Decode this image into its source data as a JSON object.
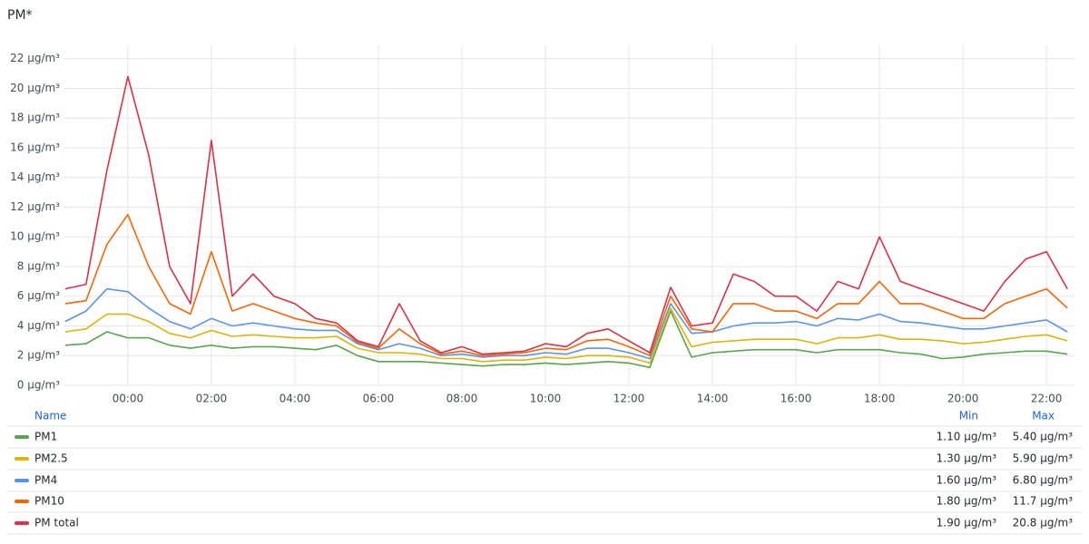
{
  "chart_data": {
    "type": "line",
    "title": "PM*",
    "x": [
      -1.5,
      -1.0,
      -0.5,
      0.0,
      0.5,
      1.0,
      1.5,
      2.0,
      2.5,
      3.0,
      3.5,
      4.0,
      4.5,
      5.0,
      5.5,
      6.0,
      6.5,
      7.0,
      7.5,
      8.0,
      8.5,
      9.0,
      9.5,
      10.0,
      10.5,
      11.0,
      11.5,
      12.0,
      12.5,
      13.0,
      13.5,
      14.0,
      14.5,
      15.0,
      15.5,
      16.0,
      16.5,
      17.0,
      17.5,
      18.0,
      18.5,
      19.0,
      19.5,
      20.0,
      20.5,
      21.0,
      21.5,
      22.0,
      22.5
    ],
    "xlim": [
      -1.54,
      22.67
    ],
    "xticks": [
      {
        "value": 0,
        "label": "00:00"
      },
      {
        "value": 2,
        "label": "02:00"
      },
      {
        "value": 4,
        "label": "04:00"
      },
      {
        "value": 6,
        "label": "06:00"
      },
      {
        "value": 8,
        "label": "08:00"
      },
      {
        "value": 10,
        "label": "10:00"
      },
      {
        "value": 12,
        "label": "12:00"
      },
      {
        "value": 14,
        "label": "14:00"
      },
      {
        "value": 16,
        "label": "16:00"
      },
      {
        "value": 18,
        "label": "18:00"
      },
      {
        "value": 20,
        "label": "20:00"
      },
      {
        "value": 22,
        "label": "22:00"
      }
    ],
    "ylim": [
      0,
      22.9
    ],
    "yticks": [
      {
        "value": 0,
        "label": "0 µg/m³"
      },
      {
        "value": 2,
        "label": "2 µg/m³"
      },
      {
        "value": 4,
        "label": "4 µg/m³"
      },
      {
        "value": 6,
        "label": "6 µg/m³"
      },
      {
        "value": 8,
        "label": "8 µg/m³"
      },
      {
        "value": 10,
        "label": "10 µg/m³"
      },
      {
        "value": 12,
        "label": "12 µg/m³"
      },
      {
        "value": 14,
        "label": "14 µg/m³"
      },
      {
        "value": 16,
        "label": "16 µg/m³"
      },
      {
        "value": 18,
        "label": "18 µg/m³"
      },
      {
        "value": 20,
        "label": "20 µg/m³"
      },
      {
        "value": 22,
        "label": "22 µg/m³"
      }
    ],
    "grid": true,
    "legend_headers": [
      "Name",
      "Min",
      "Max"
    ],
    "series": [
      {
        "name": "PM1",
        "color": "#56a64b",
        "min": "1.10 µg/m³",
        "max": "5.40 µg/m³",
        "values": [
          2.7,
          2.8,
          3.6,
          3.2,
          3.2,
          2.7,
          2.5,
          2.7,
          2.5,
          2.6,
          2.6,
          2.5,
          2.4,
          2.7,
          2.0,
          1.6,
          1.6,
          1.6,
          1.5,
          1.4,
          1.3,
          1.4,
          1.4,
          1.5,
          1.4,
          1.5,
          1.6,
          1.5,
          1.2,
          5.0,
          1.9,
          2.2,
          2.3,
          2.4,
          2.4,
          2.4,
          2.2,
          2.4,
          2.4,
          2.4,
          2.2,
          2.1,
          1.8,
          1.9,
          2.1,
          2.2,
          2.3,
          2.3,
          2.1
        ]
      },
      {
        "name": "PM2.5",
        "color": "#e0b400",
        "min": "1.30 µg/m³",
        "max": "5.90 µg/m³",
        "values": [
          3.6,
          3.8,
          4.8,
          4.8,
          4.3,
          3.5,
          3.2,
          3.7,
          3.3,
          3.4,
          3.3,
          3.2,
          3.2,
          3.3,
          2.5,
          2.2,
          2.2,
          2.1,
          1.8,
          1.8,
          1.6,
          1.7,
          1.7,
          1.9,
          1.8,
          2.0,
          2.0,
          1.9,
          1.5,
          5.2,
          2.6,
          2.9,
          3.0,
          3.1,
          3.1,
          3.1,
          2.8,
          3.2,
          3.2,
          3.4,
          3.1,
          3.1,
          3.0,
          2.8,
          2.9,
          3.1,
          3.3,
          3.4,
          3.0
        ]
      },
      {
        "name": "PM4",
        "color": "#5794f2",
        "min": "1.60 µg/m³",
        "max": "6.80 µg/m³",
        "values": [
          4.3,
          5.0,
          6.5,
          6.3,
          5.2,
          4.3,
          3.8,
          4.5,
          4.0,
          4.2,
          4.0,
          3.8,
          3.7,
          3.7,
          2.8,
          2.4,
          2.8,
          2.5,
          2.0,
          2.1,
          1.9,
          2.0,
          2.0,
          2.2,
          2.1,
          2.5,
          2.5,
          2.2,
          1.8,
          5.5,
          3.5,
          3.6,
          4.0,
          4.2,
          4.2,
          4.3,
          4.0,
          4.5,
          4.4,
          4.8,
          4.3,
          4.2,
          4.0,
          3.8,
          3.8,
          4.0,
          4.2,
          4.4,
          3.6
        ]
      },
      {
        "name": "PM10",
        "color": "#fa6400",
        "min": "1.80 µg/m³",
        "max": "11.7 µg/m³",
        "values": [
          5.5,
          5.7,
          9.5,
          11.5,
          8.0,
          5.5,
          4.8,
          9.0,
          5.0,
          5.5,
          5.0,
          4.5,
          4.2,
          4.0,
          2.9,
          2.5,
          3.8,
          2.8,
          2.1,
          2.3,
          2.0,
          2.1,
          2.2,
          2.5,
          2.4,
          3.0,
          3.1,
          2.6,
          2.0,
          6.0,
          3.8,
          3.6,
          5.5,
          5.5,
          5.0,
          5.0,
          4.5,
          5.5,
          5.5,
          7.0,
          5.5,
          5.5,
          5.0,
          4.5,
          4.5,
          5.5,
          6.0,
          6.5,
          5.2
        ]
      },
      {
        "name": "PM total",
        "color": "#e02f44",
        "min": "1.90 µg/m³",
        "max": "20.8 µg/m³",
        "values": [
          6.5,
          6.8,
          14.5,
          20.8,
          15.5,
          8.0,
          5.5,
          16.5,
          6.0,
          7.5,
          6.0,
          5.5,
          4.5,
          4.2,
          3.0,
          2.6,
          5.5,
          3.0,
          2.2,
          2.6,
          2.1,
          2.2,
          2.3,
          2.8,
          2.6,
          3.5,
          3.8,
          3.0,
          2.2,
          6.6,
          4.0,
          4.2,
          7.5,
          7.0,
          6.0,
          6.0,
          5.0,
          7.0,
          6.5,
          10.0,
          7.0,
          6.5,
          6.0,
          5.5,
          5.0,
          7.0,
          8.5,
          9.0,
          6.5
        ]
      }
    ]
  }
}
